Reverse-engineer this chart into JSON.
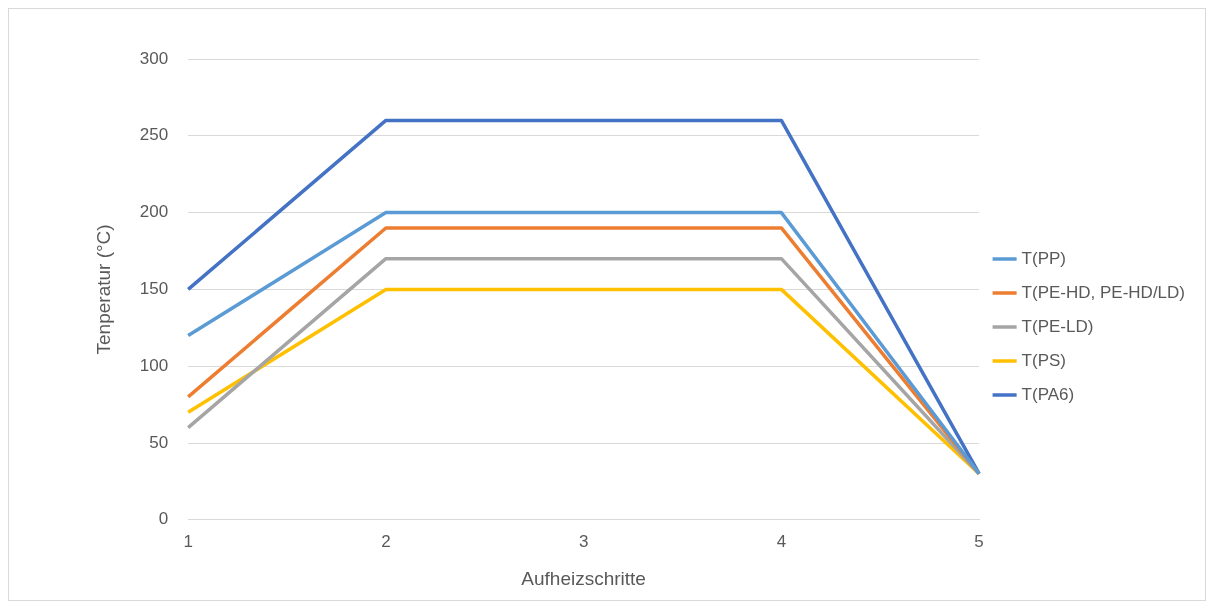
{
  "chart_data": {
    "type": "line",
    "xlabel": "Aufheizschritte",
    "ylabel": "Tenperatur (°C)",
    "categories": [
      "1",
      "2",
      "3",
      "4",
      "5"
    ],
    "series": [
      {
        "name": "T(PP)",
        "color": "#5b9bd5",
        "values": [
          120,
          200,
          200,
          200,
          30
        ]
      },
      {
        "name": "T(PE-HD, PE-HD/LD)",
        "color": "#ed7d31",
        "values": [
          80,
          190,
          190,
          190,
          30
        ]
      },
      {
        "name": "T(PE-LD)",
        "color": "#a5a5a5",
        "values": [
          60,
          170,
          170,
          170,
          30
        ]
      },
      {
        "name": "T(PS)",
        "color": "#ffc000",
        "values": [
          70,
          150,
          150,
          150,
          30
        ]
      },
      {
        "name": "T(PA6)",
        "color": "#4472c4",
        "values": [
          150,
          260,
          260,
          260,
          30
        ]
      }
    ],
    "ylim": [
      0,
      300
    ],
    "yticks": [
      0,
      50,
      100,
      150,
      200,
      250,
      300
    ],
    "grid": "y",
    "legend": "right",
    "marker": "none",
    "line_style": "solid"
  }
}
